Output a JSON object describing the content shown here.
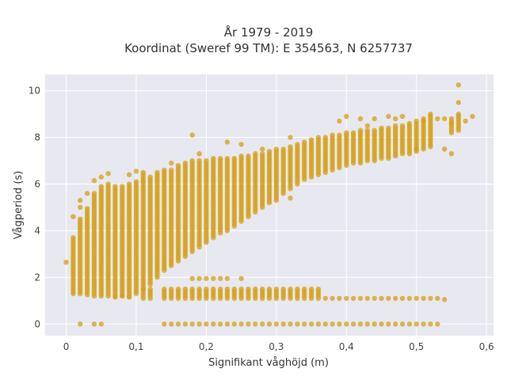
{
  "chart_data": {
    "type": "scatter",
    "title": "År 1979 - 2019",
    "subtitle": "Koordinat (Sweref 99 TM): E 354563, N 6257737",
    "xlabel": "Signifikant våghöjd (m)",
    "ylabel": "Vågperiod (s)",
    "xlim": [
      -0.03,
      0.61
    ],
    "ylim": [
      -0.5,
      10.7
    ],
    "xticks": [
      0,
      0.1,
      0.2,
      0.3,
      0.4,
      0.5,
      0.6
    ],
    "xtick_labels": [
      "0",
      "0,1",
      "0,2",
      "0,3",
      "0,4",
      "0,5",
      "0,6"
    ],
    "yticks": [
      0,
      2,
      4,
      6,
      8,
      10
    ],
    "ytick_labels": [
      "0",
      "2",
      "4",
      "6",
      "8",
      "10"
    ],
    "grid": true,
    "color": "#d4a017",
    "columns_main": [
      [
        0.01,
        1.3,
        3.7
      ],
      [
        0.02,
        1.3,
        4.5
      ],
      [
        0.03,
        1.25,
        5.0
      ],
      [
        0.04,
        1.2,
        5.6
      ],
      [
        0.05,
        1.2,
        5.9
      ],
      [
        0.06,
        1.2,
        6.0
      ],
      [
        0.07,
        1.2,
        5.8
      ],
      [
        0.08,
        1.2,
        5.9
      ],
      [
        0.09,
        1.2,
        6.0
      ],
      [
        0.1,
        1.3,
        6.1
      ],
      [
        0.11,
        1.5,
        6.4
      ],
      [
        0.12,
        1.7,
        6.3
      ],
      [
        0.13,
        2.0,
        6.5
      ],
      [
        0.14,
        2.3,
        6.6
      ],
      [
        0.15,
        2.5,
        6.6
      ],
      [
        0.16,
        2.7,
        6.8
      ],
      [
        0.17,
        2.9,
        6.9
      ],
      [
        0.18,
        3.1,
        7.0
      ],
      [
        0.19,
        3.3,
        7.0
      ],
      [
        0.2,
        3.5,
        7.0
      ],
      [
        0.21,
        3.7,
        7.1
      ],
      [
        0.22,
        3.9,
        7.1
      ],
      [
        0.23,
        4.0,
        7.1
      ],
      [
        0.24,
        4.2,
        7.1
      ],
      [
        0.25,
        4.4,
        7.2
      ],
      [
        0.26,
        4.6,
        7.2
      ],
      [
        0.27,
        4.8,
        7.3
      ],
      [
        0.28,
        5.0,
        7.3
      ],
      [
        0.29,
        5.2,
        7.4
      ],
      [
        0.3,
        5.4,
        7.5
      ],
      [
        0.31,
        5.6,
        7.5
      ],
      [
        0.32,
        5.8,
        7.6
      ],
      [
        0.33,
        6.0,
        7.7
      ],
      [
        0.34,
        6.2,
        7.8
      ],
      [
        0.35,
        6.3,
        7.9
      ],
      [
        0.36,
        6.4,
        7.9
      ],
      [
        0.37,
        6.5,
        8.0
      ],
      [
        0.38,
        6.6,
        8.1
      ],
      [
        0.39,
        6.7,
        8.1
      ],
      [
        0.4,
        6.8,
        8.2
      ],
      [
        0.41,
        6.9,
        8.2
      ],
      [
        0.42,
        6.9,
        8.3
      ],
      [
        0.43,
        7.0,
        8.3
      ],
      [
        0.44,
        7.0,
        8.3
      ],
      [
        0.45,
        7.1,
        8.4
      ],
      [
        0.46,
        7.1,
        8.4
      ],
      [
        0.47,
        7.2,
        8.5
      ],
      [
        0.48,
        7.3,
        8.5
      ],
      [
        0.49,
        7.3,
        8.6
      ],
      [
        0.5,
        7.4,
        8.7
      ],
      [
        0.51,
        7.5,
        8.8
      ],
      [
        0.52,
        7.6,
        8.9
      ],
      [
        0.55,
        8.2,
        8.8
      ],
      [
        0.56,
        8.3,
        9.0
      ]
    ],
    "columns_low": [
      [
        0.11,
        1.1,
        1.5
      ],
      [
        0.12,
        1.1,
        1.5
      ],
      [
        0.14,
        1.1,
        1.5
      ],
      [
        0.15,
        1.1,
        1.5
      ],
      [
        0.16,
        1.1,
        1.5
      ],
      [
        0.17,
        1.1,
        1.5
      ],
      [
        0.18,
        1.1,
        1.5
      ],
      [
        0.19,
        1.1,
        1.5
      ],
      [
        0.2,
        1.1,
        1.5
      ],
      [
        0.21,
        1.1,
        1.5
      ],
      [
        0.22,
        1.1,
        1.5
      ],
      [
        0.23,
        1.1,
        1.5
      ],
      [
        0.24,
        1.1,
        1.5
      ],
      [
        0.25,
        1.1,
        1.5
      ],
      [
        0.26,
        1.1,
        1.5
      ],
      [
        0.27,
        1.1,
        1.5
      ],
      [
        0.28,
        1.1,
        1.5
      ],
      [
        0.29,
        1.1,
        1.5
      ],
      [
        0.3,
        1.1,
        1.5
      ],
      [
        0.31,
        1.1,
        1.5
      ],
      [
        0.32,
        1.1,
        1.5
      ],
      [
        0.33,
        1.1,
        1.5
      ],
      [
        0.34,
        1.1,
        1.5
      ],
      [
        0.35,
        1.1,
        1.5
      ],
      [
        0.36,
        1.1,
        1.5
      ],
      [
        0.37,
        1.1,
        1.1
      ],
      [
        0.38,
        1.1,
        1.1
      ],
      [
        0.39,
        1.1,
        1.1
      ],
      [
        0.4,
        1.1,
        1.1
      ],
      [
        0.41,
        1.1,
        1.1
      ],
      [
        0.42,
        1.1,
        1.1
      ],
      [
        0.43,
        1.1,
        1.1
      ],
      [
        0.44,
        1.1,
        1.1
      ],
      [
        0.45,
        1.1,
        1.1
      ],
      [
        0.46,
        1.1,
        1.1
      ],
      [
        0.47,
        1.1,
        1.1
      ],
      [
        0.48,
        1.1,
        1.1
      ],
      [
        0.49,
        1.1,
        1.1
      ],
      [
        0.5,
        1.1,
        1.1
      ],
      [
        0.51,
        1.1,
        1.1
      ],
      [
        0.52,
        1.1,
        1.1
      ],
      [
        0.53,
        1.1,
        1.1
      ],
      [
        0.54,
        1.05,
        1.05
      ]
    ],
    "points_extra": [
      [
        0.0,
        2.65
      ],
      [
        0.01,
        4.6
      ],
      [
        0.02,
        5.0
      ],
      [
        0.02,
        5.3
      ],
      [
        0.03,
        5.6
      ],
      [
        0.04,
        6.15
      ],
      [
        0.05,
        6.3
      ],
      [
        0.06,
        6.45
      ],
      [
        0.07,
        5.9
      ],
      [
        0.09,
        6.4
      ],
      [
        0.1,
        6.55
      ],
      [
        0.11,
        6.5
      ],
      [
        0.15,
        6.9
      ],
      [
        0.18,
        8.1
      ],
      [
        0.19,
        7.3
      ],
      [
        0.23,
        7.8
      ],
      [
        0.25,
        7.7
      ],
      [
        0.28,
        7.5
      ],
      [
        0.32,
        8.0
      ],
      [
        0.36,
        8.0
      ],
      [
        0.39,
        8.7
      ],
      [
        0.4,
        8.9
      ],
      [
        0.42,
        8.8
      ],
      [
        0.43,
        8.5
      ],
      [
        0.44,
        8.8
      ],
      [
        0.46,
        8.9
      ],
      [
        0.47,
        8.8
      ],
      [
        0.48,
        8.9
      ],
      [
        0.51,
        8.7
      ],
      [
        0.52,
        9.0
      ],
      [
        0.53,
        8.8
      ],
      [
        0.54,
        8.8
      ],
      [
        0.55,
        8.6
      ],
      [
        0.56,
        10.25
      ],
      [
        0.56,
        9.5
      ],
      [
        0.57,
        8.7
      ],
      [
        0.58,
        8.9
      ],
      [
        0.55,
        7.3
      ],
      [
        0.5,
        7.5
      ],
      [
        0.54,
        7.5
      ],
      [
        0.3,
        5.3
      ],
      [
        0.32,
        5.4
      ],
      [
        0.07,
        1.15
      ],
      [
        0.09,
        1.15
      ],
      [
        0.08,
        1.2
      ],
      [
        0.18,
        1.95
      ],
      [
        0.19,
        1.95
      ],
      [
        0.2,
        1.95
      ],
      [
        0.21,
        1.95
      ],
      [
        0.22,
        1.95
      ],
      [
        0.23,
        1.95
      ],
      [
        0.25,
        1.95
      ]
    ],
    "zero_points_x": [
      0.02,
      0.04,
      0.05,
      0.14,
      0.15,
      0.16,
      0.17,
      0.18,
      0.19,
      0.2,
      0.21,
      0.22,
      0.23,
      0.24,
      0.25,
      0.26,
      0.27,
      0.28,
      0.29,
      0.3,
      0.31,
      0.32,
      0.33,
      0.34,
      0.35,
      0.36,
      0.37,
      0.38,
      0.39,
      0.4,
      0.41,
      0.42,
      0.43,
      0.44,
      0.45,
      0.46,
      0.47,
      0.48,
      0.49,
      0.5,
      0.51,
      0.52,
      0.53
    ],
    "y_step": 0.1
  }
}
